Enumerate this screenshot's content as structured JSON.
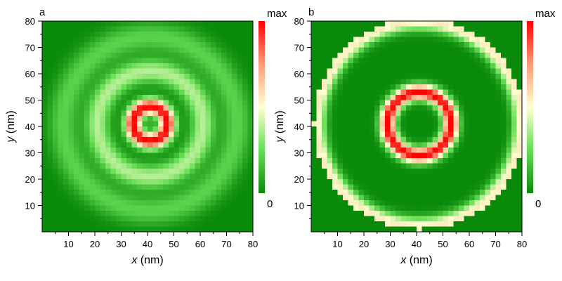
{
  "chart_data": [
    {
      "type": "heatmap",
      "panel_label": "a",
      "xlabel_var": "x",
      "xlabel_unit": " (nm)",
      "ylabel_var": "y",
      "ylabel_unit": " (nm)",
      "xlim": [
        0,
        80
      ],
      "ylim": [
        0,
        80
      ],
      "x_ticks": [
        "10",
        "20",
        "30",
        "40",
        "50",
        "60",
        "70",
        "80"
      ],
      "y_ticks": [
        "10",
        "20",
        "30",
        "40",
        "50",
        "60",
        "70",
        "80"
      ],
      "grid": false,
      "colorbar": {
        "max_label": "max",
        "min_label": "0",
        "colors": [
          "#0a8a0a",
          "#66dd55",
          "#ffffd0",
          "#ff9a7a",
          "#ff0000"
        ]
      },
      "field": {
        "description_of_values": "normalized intensity 0-1 on 40x40 grid",
        "center": [
          41,
          41
        ],
        "max_radius": null,
        "rings": [
          {
            "r": 0,
            "w": 2.0,
            "a": 0.55
          },
          {
            "r": 6.5,
            "w": 3.2,
            "a": 1.0
          },
          {
            "r": 20,
            "w": 4.5,
            "a": 0.38
          },
          {
            "r": 33,
            "w": 5.5,
            "a": 0.22
          }
        ],
        "center_dip": {
          "r": 0,
          "w": 2.2,
          "a": -0.45
        }
      }
    },
    {
      "type": "heatmap",
      "panel_label": "b",
      "xlabel_var": "x",
      "xlabel_unit": " (nm)",
      "ylabel_var": "y",
      "ylabel_unit": " (nm)",
      "xlim": [
        0,
        80
      ],
      "ylim": [
        0,
        80
      ],
      "x_ticks": [
        "10",
        "20",
        "30",
        "40",
        "50",
        "60",
        "70",
        "80"
      ],
      "y_ticks": [
        "10",
        "20",
        "30",
        "40",
        "50",
        "60",
        "70",
        "80"
      ],
      "grid": false,
      "colorbar": {
        "max_label": "max",
        "min_label": "0",
        "colors": [
          "#0a8a0a",
          "#66dd55",
          "#ffffd0",
          "#ff9a7a",
          "#ff0000"
        ]
      },
      "field": {
        "description_of_values": "normalized intensity 0-1 on 40x40 grid",
        "center": [
          41,
          41
        ],
        "max_radius": 40,
        "rings": [
          {
            "r": 12,
            "w": 3.0,
            "a": 1.0
          },
          {
            "r": 39,
            "w": 3.5,
            "a": 0.55
          }
        ],
        "center_dip": null
      }
    }
  ]
}
